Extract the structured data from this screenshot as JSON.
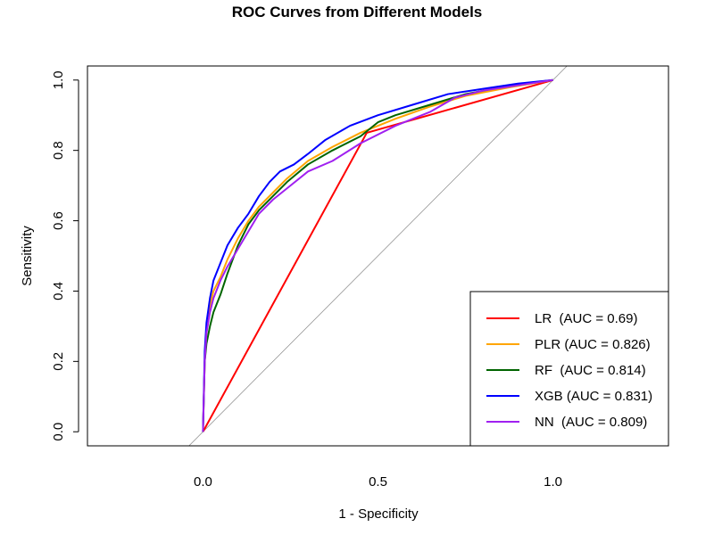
{
  "chart_data": {
    "type": "line",
    "title": "ROC Curves from Different Models",
    "xlabel": "1 - Specificity",
    "ylabel": "Sensitivity",
    "xlim": [
      -0.33,
      1.33
    ],
    "ylim": [
      -0.04,
      1.04
    ],
    "x_ticks": [
      0.0,
      0.5,
      1.0
    ],
    "x_tick_labels": [
      "0.0",
      "0.5",
      "1.0"
    ],
    "y_ticks": [
      0.0,
      0.2,
      0.4,
      0.6,
      0.8,
      1.0
    ],
    "y_tick_labels": [
      "0.0",
      "0.2",
      "0.4",
      "0.6",
      "0.8",
      "1.0"
    ],
    "legend_position": "bottom-right",
    "reference_line": {
      "from": [
        -0.04,
        -0.04
      ],
      "to": [
        1.04,
        1.04
      ],
      "color": "#888888"
    },
    "series": [
      {
        "legend": "LR  (AUC = 0.69)",
        "color": "#ff0000",
        "x": [
          0,
          0.468,
          1.0
        ],
        "y": [
          0,
          0.85,
          1.0
        ]
      },
      {
        "legend": "PLR (AUC = 0.826)",
        "color": "#ffa500",
        "x": [
          0,
          0.005,
          0.01,
          0.02,
          0.03,
          0.05,
          0.07,
          0.1,
          0.13,
          0.16,
          0.2,
          0.24,
          0.3,
          0.37,
          0.45,
          0.55,
          0.65,
          0.75,
          0.88,
          1.0
        ],
        "y": [
          0,
          0.2,
          0.29,
          0.36,
          0.4,
          0.44,
          0.49,
          0.55,
          0.6,
          0.64,
          0.68,
          0.72,
          0.77,
          0.81,
          0.85,
          0.89,
          0.925,
          0.955,
          0.98,
          1.0
        ]
      },
      {
        "legend": "RF  (AUC = 0.814)",
        "color": "#006400",
        "x": [
          0,
          0.005,
          0.01,
          0.02,
          0.03,
          0.05,
          0.07,
          0.1,
          0.13,
          0.16,
          0.2,
          0.24,
          0.3,
          0.37,
          0.45,
          0.5,
          0.55,
          0.65,
          0.75,
          0.88,
          1.0
        ],
        "y": [
          0,
          0.2,
          0.25,
          0.3,
          0.34,
          0.39,
          0.45,
          0.53,
          0.59,
          0.63,
          0.67,
          0.71,
          0.76,
          0.8,
          0.84,
          0.88,
          0.9,
          0.93,
          0.96,
          0.985,
          1.0
        ]
      },
      {
        "legend": "XGB (AUC = 0.831)",
        "color": "#0000ff",
        "x": [
          0,
          0.005,
          0.01,
          0.02,
          0.03,
          0.05,
          0.07,
          0.1,
          0.13,
          0.16,
          0.19,
          0.22,
          0.26,
          0.3,
          0.35,
          0.42,
          0.5,
          0.6,
          0.7,
          0.8,
          0.9,
          1.0
        ],
        "y": [
          0,
          0.23,
          0.31,
          0.38,
          0.43,
          0.48,
          0.53,
          0.58,
          0.62,
          0.67,
          0.71,
          0.74,
          0.76,
          0.79,
          0.83,
          0.87,
          0.9,
          0.93,
          0.96,
          0.975,
          0.99,
          1.0
        ]
      },
      {
        "legend": "NN  (AUC = 0.809)",
        "color": "#a020f0",
        "x": [
          0,
          0.005,
          0.01,
          0.02,
          0.03,
          0.05,
          0.07,
          0.1,
          0.13,
          0.16,
          0.2,
          0.25,
          0.3,
          0.37,
          0.45,
          0.55,
          0.65,
          0.72,
          0.8,
          0.9,
          1.0
        ],
        "y": [
          0,
          0.2,
          0.28,
          0.34,
          0.38,
          0.43,
          0.47,
          0.52,
          0.57,
          0.62,
          0.66,
          0.7,
          0.74,
          0.77,
          0.82,
          0.87,
          0.91,
          0.95,
          0.97,
          0.985,
          1.0
        ]
      }
    ]
  }
}
